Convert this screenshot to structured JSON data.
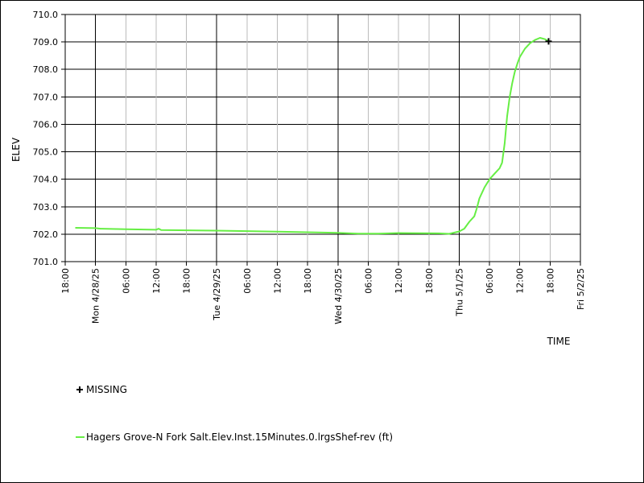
{
  "chart_data": {
    "type": "line",
    "title": "",
    "ylabel": "ELEV",
    "xlabel": "TIME",
    "ylim": [
      701.0,
      710.0
    ],
    "yticks": [
      "701.0",
      "702.0",
      "703.0",
      "704.0",
      "705.0",
      "706.0",
      "707.0",
      "708.0",
      "709.0",
      "710.0"
    ],
    "xlim_hours": [
      -6,
      96
    ],
    "xticks": [
      {
        "h": -6,
        "label": "18:00",
        "major": false
      },
      {
        "h": 0,
        "label": "Mon 4/28/25",
        "major": true
      },
      {
        "h": 6,
        "label": "06:00",
        "major": false
      },
      {
        "h": 12,
        "label": "12:00",
        "major": false
      },
      {
        "h": 18,
        "label": "18:00",
        "major": false
      },
      {
        "h": 24,
        "label": "Tue 4/29/25",
        "major": true
      },
      {
        "h": 30,
        "label": "06:00",
        "major": false
      },
      {
        "h": 36,
        "label": "12:00",
        "major": false
      },
      {
        "h": 42,
        "label": "18:00",
        "major": false
      },
      {
        "h": 48,
        "label": "Wed 4/30/25",
        "major": true
      },
      {
        "h": 54,
        "label": "06:00",
        "major": false
      },
      {
        "h": 60,
        "label": "12:00",
        "major": false
      },
      {
        "h": 66,
        "label": "18:00",
        "major": false
      },
      {
        "h": 72,
        "label": "Thu 5/1/25",
        "major": true
      },
      {
        "h": 78,
        "label": "06:00",
        "major": false
      },
      {
        "h": 84,
        "label": "12:00",
        "major": false
      },
      {
        "h": 90,
        "label": "18:00",
        "major": false
      },
      {
        "h": 96,
        "label": "Fri 5/2/25",
        "major": true
      }
    ],
    "series": [
      {
        "name": "Hagers Grove-N Fork Salt.Elev.Inst.15Minutes.0.lrgsShef-rev (ft)",
        "color": "#66ee44",
        "points": [
          [
            -4,
            702.23
          ],
          [
            0,
            702.22
          ],
          [
            1,
            702.2
          ],
          [
            6,
            702.18
          ],
          [
            12,
            702.16
          ],
          [
            12.5,
            702.2
          ],
          [
            13,
            702.15
          ],
          [
            24,
            702.13
          ],
          [
            30,
            702.11
          ],
          [
            36,
            702.09
          ],
          [
            42,
            702.07
          ],
          [
            48,
            702.05
          ],
          [
            52,
            702.02
          ],
          [
            56,
            702.02
          ],
          [
            60,
            702.04
          ],
          [
            68,
            702.03
          ],
          [
            70,
            702.01
          ],
          [
            72,
            702.1
          ],
          [
            73,
            702.2
          ],
          [
            74,
            702.45
          ],
          [
            75,
            702.65
          ],
          [
            75.5,
            702.95
          ],
          [
            76,
            703.3
          ],
          [
            77,
            703.7
          ],
          [
            78,
            704.0
          ],
          [
            79,
            704.2
          ],
          [
            80,
            704.4
          ],
          [
            80.5,
            704.6
          ],
          [
            81,
            705.3
          ],
          [
            81.5,
            706.3
          ],
          [
            82,
            707.0
          ],
          [
            82.5,
            707.5
          ],
          [
            83,
            707.9
          ],
          [
            83.5,
            708.2
          ],
          [
            84,
            708.45
          ],
          [
            85,
            708.75
          ],
          [
            86,
            708.95
          ],
          [
            87,
            709.07
          ],
          [
            88,
            709.15
          ],
          [
            89,
            709.1
          ],
          [
            89.5,
            709.05
          ]
        ]
      }
    ],
    "missing_markers": [
      [
        89.7,
        709.02
      ]
    ],
    "legend": [
      {
        "symbol": "plus",
        "label": "MISSING"
      },
      {
        "symbol": "line",
        "label": "Hagers Grove-N Fork Salt.Elev.Inst.15Minutes.0.lrgsShef-rev (ft)"
      }
    ],
    "grid": true
  }
}
